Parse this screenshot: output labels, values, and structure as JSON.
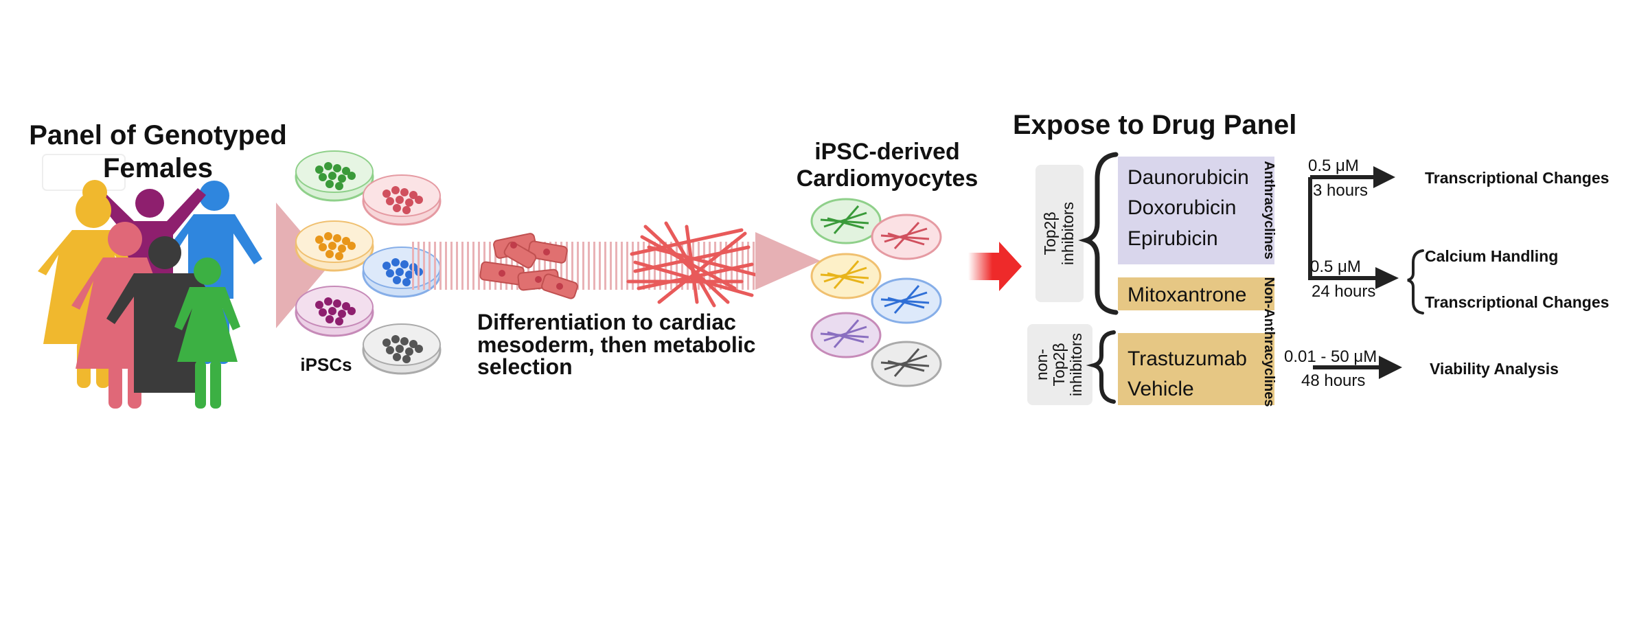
{
  "left": {
    "title_line1": "Panel of Genotyped",
    "title_line2": "Females",
    "ipsc_label": "iPSCs"
  },
  "middle": {
    "diff_line1": "Differentiation to cardiac",
    "diff_line2": "mesoderm, then metabolic",
    "diff_line3": "selection",
    "cm_line1": "iPSC-derived",
    "cm_line2": "Cardiomyocytes"
  },
  "drug": {
    "title": "Expose to Drug Panel",
    "top2b_line1": "Top2β",
    "top2b_line2": "inhibitors",
    "non_line1": "non-",
    "non_line2": "Top2β",
    "non_line3": "inhibitors",
    "anthra_label": "Anthracyclines",
    "nonanthra_label": "Non-Anthracyclines",
    "drugs_anthra": [
      "Daunorubicin",
      "Doxorubicin",
      "Epirubicin"
    ],
    "drug_mito": "Mitoxantrone",
    "drugs_non": [
      "Trastuzumab",
      "Vehicle"
    ]
  },
  "outcomes": {
    "arrow1_dose": "0.5 μM",
    "arrow1_time": "3 hours",
    "arrow1_result": "Transcriptional Changes",
    "arrow2_dose": "0.5 μM",
    "arrow2_time": "24 hours",
    "arrow2_result1": "Calcium Handling",
    "arrow2_result2": "Transcriptional Changes",
    "arrow3_dose": "0.01 - 50 μM",
    "arrow3_time": "48 hours",
    "arrow3_result": "Viability Analysis"
  },
  "colors": {
    "dish_green": "#4caf50",
    "dish_red": "#e05a6a",
    "dish_orange": "#f0a020",
    "dish_blue": "#2f6fd6",
    "dish_purple": "#8e1f6e",
    "dish_gray": "#555555",
    "anthra_box": "#d9d6ec",
    "nonanthra_box": "#e6c784",
    "drug_arrow": "#ee2a2a"
  }
}
